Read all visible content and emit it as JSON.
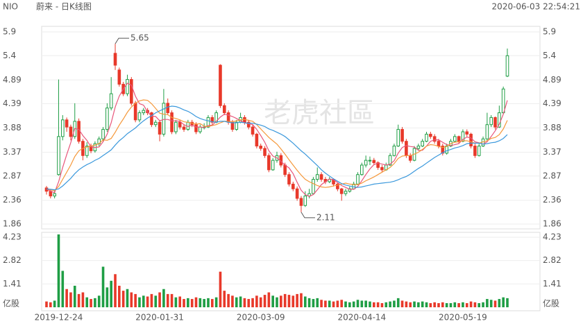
{
  "chart_data": {
    "type": "candlestick",
    "title": "NIO",
    "subtitle": "蔚来 - 日K线图",
    "timestamp": "2020-06-03 22:54:21",
    "watermark": "老虎社區",
    "up_color": "#1f9e45",
    "down_color": "#e8392a",
    "categories": [
      null,
      null,
      null,
      "2019-12-24",
      null,
      null,
      null,
      null,
      null,
      null,
      null,
      null,
      null,
      null,
      null,
      null,
      null,
      null,
      null,
      null,
      null,
      null,
      null,
      null,
      null,
      null,
      null,
      null,
      "2020-01-31",
      null,
      null,
      null,
      null,
      null,
      null,
      null,
      null,
      null,
      null,
      null,
      null,
      null,
      null,
      null,
      null,
      null,
      null,
      null,
      null,
      null,
      null,
      null,
      null,
      "2020-03-09",
      null,
      null,
      null,
      null,
      null,
      null,
      null,
      null,
      null,
      null,
      null,
      null,
      null,
      null,
      null,
      null,
      null,
      null,
      null,
      null,
      null,
      null,
      null,
      null,
      "2020-04-14",
      null,
      null,
      null,
      null,
      null,
      null,
      null,
      null,
      null,
      null,
      null,
      null,
      null,
      null,
      null,
      null,
      null,
      null,
      null,
      null,
      null,
      null,
      null,
      null,
      "2020-05-19",
      null,
      null,
      null,
      null,
      null,
      null,
      null,
      null,
      null,
      null,
      null
    ],
    "ohlc": [
      [
        2.62,
        2.66,
        2.48,
        2.55
      ],
      [
        2.55,
        2.58,
        2.4,
        2.45
      ],
      [
        2.45,
        2.56,
        2.4,
        2.5
      ],
      [
        2.9,
        4.9,
        2.88,
        3.7
      ],
      [
        3.7,
        4.15,
        3.62,
        4.05
      ],
      [
        4.05,
        4.1,
        3.8,
        3.9
      ],
      [
        3.9,
        3.95,
        3.62,
        3.7
      ],
      [
        3.7,
        4.4,
        3.65,
        4.02
      ],
      [
        4.02,
        4.08,
        3.55,
        3.6
      ],
      [
        3.6,
        3.65,
        3.2,
        3.3
      ],
      [
        3.3,
        3.58,
        3.25,
        3.5
      ],
      [
        3.5,
        3.55,
        3.35,
        3.4
      ],
      [
        3.4,
        3.6,
        3.36,
        3.55
      ],
      [
        3.55,
        3.7,
        3.5,
        3.65
      ],
      [
        3.65,
        3.9,
        3.6,
        3.85
      ],
      [
        3.85,
        4.4,
        3.8,
        4.3
      ],
      [
        4.3,
        4.95,
        4.25,
        4.6
      ],
      [
        5.45,
        5.65,
        5.1,
        5.2
      ],
      [
        5.1,
        5.15,
        4.75,
        4.8
      ],
      [
        4.8,
        4.85,
        4.55,
        4.6
      ],
      [
        4.6,
        5.0,
        4.55,
        4.9
      ],
      [
        4.9,
        4.95,
        4.35,
        4.4
      ],
      [
        4.4,
        4.45,
        4.0,
        4.05
      ],
      [
        4.05,
        4.25,
        4.0,
        4.2
      ],
      [
        4.2,
        4.3,
        4.15,
        4.25
      ],
      [
        4.25,
        4.3,
        4.15,
        4.2
      ],
      [
        4.2,
        4.22,
        3.9,
        3.95
      ],
      [
        3.95,
        4.05,
        3.9,
        4.0
      ],
      [
        4.0,
        4.05,
        3.6,
        3.75
      ],
      [
        3.75,
        4.7,
        3.7,
        4.4
      ],
      [
        4.4,
        4.5,
        4.15,
        4.2
      ],
      [
        4.2,
        4.25,
        3.75,
        3.8
      ],
      [
        3.8,
        4.05,
        3.75,
        4.0
      ],
      [
        4.0,
        4.05,
        3.85,
        3.9
      ],
      [
        3.9,
        3.95,
        3.8,
        3.85
      ],
      [
        3.85,
        4.05,
        3.82,
        4.0
      ],
      [
        4.0,
        4.05,
        3.9,
        3.95
      ],
      [
        3.95,
        4.0,
        3.75,
        3.8
      ],
      [
        3.8,
        3.95,
        3.76,
        3.9
      ],
      [
        3.9,
        3.98,
        3.85,
        3.9
      ],
      [
        3.9,
        4.15,
        3.88,
        4.1
      ],
      [
        4.1,
        4.15,
        3.95,
        4.0
      ],
      [
        4.0,
        4.25,
        3.98,
        4.2
      ],
      [
        5.2,
        5.22,
        4.3,
        4.35
      ],
      [
        4.35,
        4.4,
        4.15,
        4.2
      ],
      [
        4.2,
        4.25,
        3.95,
        4.0
      ],
      [
        4.0,
        4.05,
        3.8,
        3.85
      ],
      [
        3.85,
        4.05,
        3.82,
        4.0
      ],
      [
        4.0,
        4.2,
        3.98,
        4.1
      ],
      [
        4.1,
        4.15,
        3.95,
        4.0
      ],
      [
        4.0,
        4.05,
        3.85,
        3.9
      ],
      [
        3.9,
        3.95,
        3.7,
        3.75
      ],
      [
        3.75,
        3.78,
        3.45,
        3.5
      ],
      [
        3.5,
        3.55,
        3.4,
        3.45
      ],
      [
        3.45,
        3.5,
        3.25,
        3.3
      ],
      [
        3.3,
        3.35,
        2.95,
        3.0
      ],
      [
        3.0,
        3.25,
        2.98,
        3.2
      ],
      [
        3.2,
        3.38,
        3.15,
        3.3
      ],
      [
        3.3,
        3.35,
        3.05,
        3.1
      ],
      [
        3.1,
        3.15,
        2.85,
        2.9
      ],
      [
        2.9,
        2.95,
        2.65,
        2.7
      ],
      [
        2.7,
        2.75,
        2.55,
        2.6
      ],
      [
        2.6,
        2.65,
        2.35,
        2.4
      ],
      [
        2.4,
        2.45,
        2.11,
        2.25
      ],
      [
        2.25,
        2.55,
        2.22,
        2.45
      ],
      [
        2.45,
        2.6,
        2.4,
        2.5
      ],
      [
        2.5,
        2.85,
        2.48,
        2.8
      ],
      [
        2.8,
        3.05,
        2.75,
        2.9
      ],
      [
        2.9,
        2.95,
        2.75,
        2.8
      ],
      [
        2.8,
        2.85,
        2.7,
        2.75
      ],
      [
        2.75,
        2.85,
        2.72,
        2.8
      ],
      [
        2.8,
        2.82,
        2.65,
        2.7
      ],
      [
        2.7,
        2.72,
        2.55,
        2.6
      ],
      [
        2.6,
        2.62,
        2.35,
        2.5
      ],
      [
        2.5,
        2.6,
        2.45,
        2.55
      ],
      [
        2.55,
        2.65,
        2.52,
        2.6
      ],
      [
        2.6,
        2.75,
        2.58,
        2.7
      ],
      [
        2.7,
        2.95,
        2.68,
        2.9
      ],
      [
        2.9,
        3.15,
        2.88,
        3.1
      ],
      [
        3.1,
        3.3,
        3.05,
        3.2
      ],
      [
        3.2,
        3.28,
        3.1,
        3.2
      ],
      [
        3.2,
        3.25,
        3.1,
        3.15
      ],
      [
        3.15,
        3.18,
        3.0,
        3.05
      ],
      [
        3.05,
        3.1,
        2.95,
        3.0
      ],
      [
        3.0,
        3.15,
        2.98,
        3.1
      ],
      [
        3.1,
        3.35,
        3.08,
        3.3
      ],
      [
        3.3,
        3.55,
        3.28,
        3.5
      ],
      [
        3.5,
        3.95,
        3.48,
        3.85
      ],
      [
        3.85,
        3.9,
        3.55,
        3.6
      ],
      [
        3.6,
        3.65,
        3.25,
        3.3
      ],
      [
        3.3,
        3.35,
        3.15,
        3.2
      ],
      [
        3.2,
        3.5,
        3.18,
        3.45
      ],
      [
        3.45,
        3.55,
        3.4,
        3.5
      ],
      [
        3.5,
        3.65,
        3.48,
        3.6
      ],
      [
        3.6,
        3.8,
        3.58,
        3.75
      ],
      [
        3.75,
        3.8,
        3.65,
        3.7
      ],
      [
        3.7,
        3.75,
        3.55,
        3.6
      ],
      [
        3.6,
        3.65,
        3.45,
        3.5
      ],
      [
        3.5,
        3.55,
        3.3,
        3.35
      ],
      [
        3.35,
        3.55,
        3.32,
        3.5
      ],
      [
        3.5,
        3.65,
        3.48,
        3.6
      ],
      [
        3.6,
        3.75,
        3.58,
        3.7
      ],
      [
        3.7,
        3.72,
        3.55,
        3.6
      ],
      [
        3.6,
        3.85,
        3.58,
        3.8
      ],
      [
        3.8,
        3.85,
        3.7,
        3.75
      ],
      [
        3.75,
        3.78,
        3.45,
        3.5
      ],
      [
        3.5,
        3.55,
        3.25,
        3.3
      ],
      [
        3.3,
        3.55,
        3.28,
        3.5
      ],
      [
        3.5,
        3.7,
        3.48,
        3.65
      ],
      [
        3.65,
        4.2,
        3.62,
        3.95
      ],
      [
        3.95,
        4.15,
        3.9,
        4.1
      ],
      [
        4.1,
        4.12,
        3.85,
        3.9
      ],
      [
        3.9,
        4.35,
        3.88,
        4.2
      ],
      [
        4.2,
        4.75,
        4.18,
        4.7
      ],
      [
        4.97,
        5.55,
        4.95,
        5.4
      ]
    ],
    "ylim": [
      1.86,
      5.9
    ],
    "yticks": [
      1.86,
      2.36,
      2.87,
      3.37,
      3.88,
      4.39,
      4.89,
      5.4,
      5.9
    ],
    "annotations": [
      {
        "label": "5.65"
      },
      {
        "label": "2.11"
      }
    ],
    "ma": [
      {
        "color": "#e8557a",
        "values": [
          2.6,
          2.55,
          2.52,
          2.75,
          3.05,
          3.32,
          3.57,
          3.87,
          3.85,
          3.72,
          3.62,
          3.48,
          3.47,
          3.48,
          3.59,
          3.75,
          3.99,
          4.32,
          4.55,
          4.7,
          4.82,
          4.78,
          4.55,
          4.39,
          4.36,
          4.22,
          4.13,
          4.12,
          4.03,
          4.06,
          4.06,
          4.03,
          4.03,
          4.02,
          3.95,
          3.91,
          3.94,
          3.9,
          3.9,
          3.89,
          3.93,
          3.94,
          4.02,
          4.11,
          4.17,
          4.15,
          4.12,
          4.08,
          4.03,
          3.99,
          3.97,
          3.95,
          3.85,
          3.72,
          3.58,
          3.4,
          3.29,
          3.25,
          3.18,
          3.1,
          3.04,
          2.92,
          2.74,
          2.57,
          2.48,
          2.44,
          2.48,
          2.58,
          2.69,
          2.75,
          2.81,
          2.79,
          2.73,
          2.67,
          2.63,
          2.59,
          2.59,
          2.65,
          2.77,
          2.9,
          3.02,
          3.11,
          3.14,
          3.12,
          3.1,
          3.12,
          3.19,
          3.35,
          3.47,
          3.51,
          3.49,
          3.48,
          3.41,
          3.41,
          3.5,
          3.6,
          3.63,
          3.63,
          3.58,
          3.53,
          3.51,
          3.53,
          3.55,
          3.64,
          3.69,
          3.67,
          3.59,
          3.57,
          3.54,
          3.59,
          3.7,
          3.82,
          3.96,
          4.17,
          4.46
        ]
      },
      {
        "color": "#f5983a",
        "values": [
          2.6,
          2.58,
          2.56,
          2.65,
          2.8,
          2.95,
          3.1,
          3.28,
          3.4,
          3.45,
          3.48,
          3.5,
          3.52,
          3.55,
          3.63,
          3.62,
          3.66,
          3.79,
          3.94,
          4.07,
          4.21,
          4.32,
          4.4,
          4.45,
          4.47,
          4.46,
          4.39,
          4.29,
          4.19,
          4.17,
          4.16,
          4.1,
          4.08,
          4.05,
          4.01,
          4.0,
          3.98,
          3.96,
          3.97,
          3.92,
          3.91,
          3.93,
          3.95,
          3.99,
          4.02,
          4.02,
          4.01,
          4.03,
          4.05,
          4.06,
          4.04,
          4.02,
          3.95,
          3.86,
          3.77,
          3.68,
          3.61,
          3.54,
          3.44,
          3.33,
          3.21,
          3.1,
          2.99,
          2.89,
          2.8,
          2.75,
          2.71,
          2.67,
          2.64,
          2.63,
          2.64,
          2.66,
          2.68,
          2.7,
          2.72,
          2.7,
          2.69,
          2.69,
          2.72,
          2.77,
          2.81,
          2.85,
          2.9,
          2.95,
          3.0,
          3.05,
          3.13,
          3.24,
          3.29,
          3.3,
          3.3,
          3.33,
          3.37,
          3.43,
          3.5,
          3.53,
          3.52,
          3.49,
          3.47,
          3.49,
          3.55,
          3.58,
          3.59,
          3.61,
          3.61,
          3.59,
          3.56,
          3.56,
          3.59,
          3.61,
          3.66,
          3.68,
          3.74,
          3.86,
          4.04
        ]
      },
      {
        "color": "#3a98dc",
        "values": [
          2.6,
          2.59,
          2.58,
          2.6,
          2.66,
          2.74,
          2.82,
          2.92,
          3.0,
          3.06,
          3.11,
          3.15,
          3.2,
          3.24,
          3.3,
          3.36,
          3.42,
          3.52,
          3.61,
          3.68,
          3.76,
          3.82,
          3.88,
          3.96,
          4.03,
          4.09,
          4.14,
          4.2,
          4.24,
          4.28,
          4.32,
          4.34,
          4.33,
          4.3,
          4.26,
          4.23,
          4.18,
          4.12,
          4.08,
          4.05,
          4.03,
          4.01,
          4.0,
          4.02,
          4.02,
          4.0,
          3.99,
          3.99,
          4.0,
          3.99,
          3.98,
          3.98,
          3.96,
          3.94,
          3.91,
          3.86,
          3.83,
          3.79,
          3.75,
          3.7,
          3.63,
          3.56,
          3.48,
          3.4,
          3.33,
          3.25,
          3.17,
          3.09,
          3.0,
          2.93,
          2.87,
          2.81,
          2.76,
          2.71,
          2.68,
          2.66,
          2.64,
          2.63,
          2.64,
          2.66,
          2.68,
          2.7,
          2.71,
          2.72,
          2.73,
          2.74,
          2.76,
          2.79,
          2.83,
          2.86,
          2.91,
          2.97,
          3.03,
          3.08,
          3.14,
          3.2,
          3.26,
          3.31,
          3.36,
          3.4,
          3.43,
          3.46,
          3.48,
          3.51,
          3.55,
          3.56,
          3.56,
          3.56,
          3.54,
          3.55,
          3.57,
          3.58,
          3.61,
          3.66,
          3.74
        ]
      }
    ],
    "volume": {
      "unit": "亿股",
      "ylim": [
        0,
        4.44
      ],
      "yticks": [
        1.41,
        2.82,
        4.23
      ],
      "values": [
        0.35,
        0.3,
        0.4,
        4.4,
        2.2,
        1.1,
        0.9,
        1.3,
        0.8,
        0.9,
        0.6,
        0.5,
        0.55,
        0.7,
        2.45,
        1.2,
        1.6,
        2.0,
        1.3,
        1.0,
        1.1,
        0.9,
        0.8,
        0.6,
        0.7,
        0.65,
        0.8,
        0.7,
        0.9,
        1.1,
        0.8,
        0.8,
        0.6,
        0.65,
        0.5,
        0.55,
        0.5,
        0.6,
        0.55,
        0.5,
        0.55,
        0.5,
        0.6,
        2.15,
        1.0,
        0.8,
        0.7,
        0.6,
        0.65,
        0.55,
        0.5,
        0.55,
        0.7,
        0.6,
        0.75,
        0.9,
        0.7,
        0.6,
        0.7,
        0.8,
        0.75,
        0.7,
        0.8,
        0.85,
        0.65,
        0.55,
        0.5,
        0.55,
        0.45,
        0.4,
        0.4,
        0.35,
        0.4,
        0.45,
        0.35,
        0.3,
        0.35,
        0.45,
        0.4,
        0.4,
        0.35,
        0.3,
        0.3,
        0.25,
        0.3,
        0.35,
        0.4,
        0.55,
        0.4,
        0.35,
        0.3,
        0.35,
        0.3,
        0.35,
        0.3,
        0.25,
        0.3,
        0.25,
        0.3,
        0.25,
        0.25,
        0.3,
        0.25,
        0.3,
        0.25,
        0.35,
        0.3,
        0.25,
        0.3,
        0.5,
        0.45,
        0.4,
        0.5,
        0.6,
        0.55
      ]
    }
  }
}
